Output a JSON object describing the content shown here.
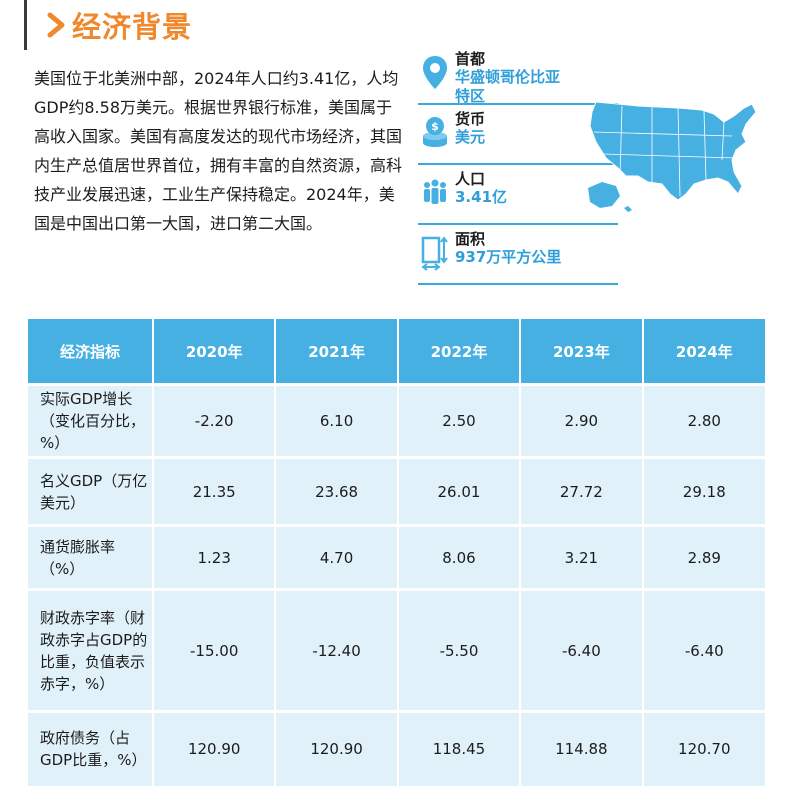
{
  "section": {
    "title": "经济背景"
  },
  "intro": {
    "text": "美国位于北美洲中部，2024年人口约3.41亿，人均GDP约8.58万美元。根据世界银行标准，美国属于高收入国家。美国有高度发达的现代市场经济，其国内生产总值居世界首位，拥有丰富的自然资源，高科技产业发展迅速，工业生产保持稳定。2024年，美国是中国出口第一大国，进口第二大国。"
  },
  "facts": [
    {
      "label": "首都",
      "value": "华盛顿哥伦比亚\n特区",
      "icon": "map-pin-icon"
    },
    {
      "label": "货币",
      "value": "美元",
      "icon": "coin-stack-icon"
    },
    {
      "label": "人口",
      "value": "3.41亿",
      "icon": "people-icon"
    },
    {
      "label": "面积",
      "value": "937万平方公里",
      "icon": "area-measure-icon"
    }
  ],
  "colors": {
    "accent": "#f0882d",
    "blue": "#46b0e3",
    "light": "#e0f1f9",
    "value_blue": "#2f9fd9"
  },
  "table": {
    "headers": [
      "经济指标",
      "2020年",
      "2021年",
      "2022年",
      "2023年",
      "2024年"
    ],
    "rows": [
      {
        "indicator": "实际GDP增长（变化百分比，%）",
        "values": [
          "-2.20",
          "6.10",
          "2.50",
          "2.90",
          "2.80"
        ]
      },
      {
        "indicator": "名义GDP（万亿美元）",
        "values": [
          "21.35",
          "23.68",
          "26.01",
          "27.72",
          "29.18"
        ]
      },
      {
        "indicator": "通货膨胀率（%）",
        "values": [
          "1.23",
          "4.70",
          "8.06",
          "3.21",
          "2.89"
        ]
      },
      {
        "indicator": "财政赤字率（财政赤字占GDP的比重，负值表示赤字，%）",
        "values": [
          "-15.00",
          "-12.40",
          "-5.50",
          "-6.40",
          "-6.40"
        ]
      },
      {
        "indicator": "政府债务（占GDP比重，%）",
        "values": [
          "120.90",
          "120.90",
          "118.45",
          "114.88",
          "120.70"
        ]
      }
    ]
  }
}
